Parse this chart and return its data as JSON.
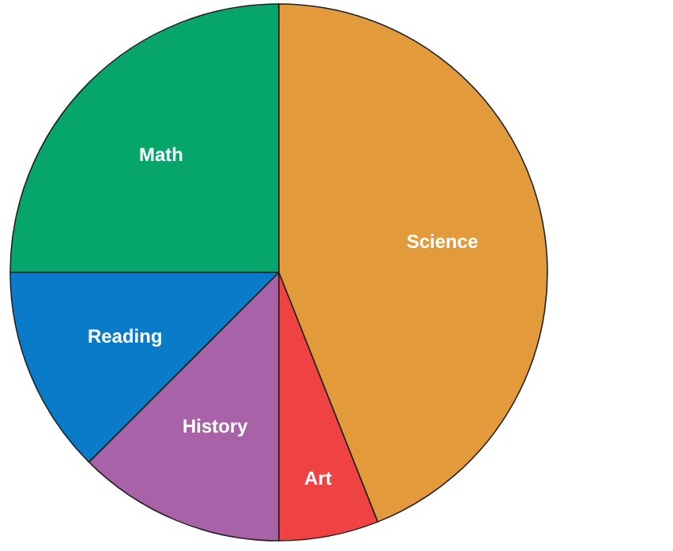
{
  "chart_data": {
    "type": "pie",
    "categories": [
      "Science",
      "Art",
      "History",
      "Reading",
      "Math"
    ],
    "values": [
      44,
      6,
      12.5,
      12.5,
      25
    ],
    "colors": [
      "#e39a3b",
      "#ef4343",
      "#a862a8",
      "#0a7bc8",
      "#05a56b"
    ]
  }
}
